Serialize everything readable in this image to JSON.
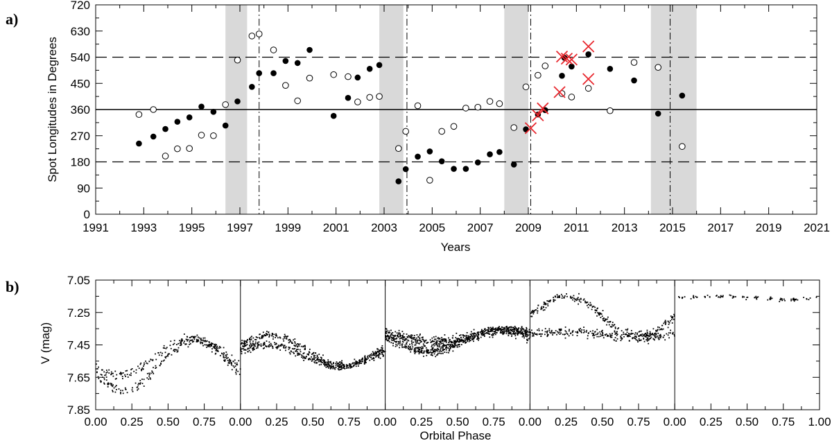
{
  "chart_data": [
    {
      "panel": "a)",
      "type": "scatter",
      "xlabel": "Years",
      "ylabel": "Spot Longitudes in Degrees",
      "xlim": [
        1991,
        2021
      ],
      "ylim": [
        0,
        720
      ],
      "xticks": [
        "1991",
        "1993",
        "1995",
        "1997",
        "1999",
        "2001",
        "2003",
        "2005",
        "2007",
        "2009",
        "2011",
        "2013",
        "2015",
        "2017",
        "2019",
        "2021"
      ],
      "yticks": [
        "0",
        "90",
        "180",
        "270",
        "360",
        "450",
        "540",
        "630",
        "720"
      ],
      "hlines_dashed": [
        180,
        540
      ],
      "hline_solid": 360,
      "vlines_dashdot": [
        1997.8,
        2003.95,
        2009.1,
        2014.9
      ],
      "shaded_bands": [
        [
          1996.4,
          1997.3
        ],
        [
          2002.8,
          2003.8
        ],
        [
          2008.0,
          2009.0
        ],
        [
          2014.1,
          2016.0
        ]
      ],
      "series": [
        {
          "marker": "filled-circle",
          "points": [
            [
              1992.8,
              243
            ],
            [
              1993.4,
              267
            ],
            [
              1993.9,
              293
            ],
            [
              1994.4,
              318
            ],
            [
              1994.9,
              333
            ],
            [
              1995.4,
              370
            ],
            [
              1995.9,
              352
            ],
            [
              1996.4,
              305
            ],
            [
              1996.9,
              388
            ],
            [
              1997.5,
              438
            ],
            [
              1997.8,
              485
            ],
            [
              1998.4,
              485
            ],
            [
              1998.9,
              527
            ],
            [
              1999.4,
              520
            ],
            [
              1999.9,
              565
            ],
            [
              2000.9,
              338
            ],
            [
              2001.5,
              400
            ],
            [
              2001.9,
              470
            ],
            [
              2002.4,
              500
            ],
            [
              2002.8,
              513
            ],
            [
              2003.6,
              113
            ],
            [
              2003.9,
              155
            ],
            [
              2004.4,
              198
            ],
            [
              2004.9,
              216
            ],
            [
              2005.4,
              182
            ],
            [
              2005.9,
              156
            ],
            [
              2006.4,
              156
            ],
            [
              2006.9,
              178
            ],
            [
              2007.4,
              206
            ],
            [
              2007.8,
              214
            ],
            [
              2008.4,
              171
            ],
            [
              2008.9,
              292
            ],
            [
              2009.4,
              343
            ],
            [
              2009.7,
              358
            ],
            [
              2010.4,
              476
            ],
            [
              2010.5,
              538
            ],
            [
              2010.8,
              508
            ],
            [
              2011.5,
              550
            ],
            [
              2012.4,
              500
            ],
            [
              2013.4,
              460
            ],
            [
              2014.4,
              346
            ],
            [
              2015.4,
              408
            ]
          ]
        },
        {
          "marker": "open-circle",
          "points": [
            [
              1992.8,
              343
            ],
            [
              1993.4,
              360
            ],
            [
              1993.9,
              200
            ],
            [
              1994.4,
              225
            ],
            [
              1994.9,
              226
            ],
            [
              1995.4,
              272
            ],
            [
              1995.9,
              270
            ],
            [
              1996.4,
              377
            ],
            [
              1996.9,
              530
            ],
            [
              1997.5,
              613
            ],
            [
              1997.8,
              620
            ],
            [
              1998.4,
              565
            ],
            [
              1998.9,
              443
            ],
            [
              1999.4,
              390
            ],
            [
              1999.9,
              468
            ],
            [
              2000.9,
              480
            ],
            [
              2001.5,
              473
            ],
            [
              2001.9,
              386
            ],
            [
              2002.4,
              402
            ],
            [
              2002.8,
              405
            ],
            [
              2003.6,
              226
            ],
            [
              2003.9,
              285
            ],
            [
              2004.4,
              373
            ],
            [
              2004.9,
              117
            ],
            [
              2005.4,
              285
            ],
            [
              2005.9,
              302
            ],
            [
              2006.4,
              365
            ],
            [
              2006.9,
              368
            ],
            [
              2007.4,
              388
            ],
            [
              2007.8,
              380
            ],
            [
              2008.4,
              298
            ],
            [
              2008.9,
              438
            ],
            [
              2009.4,
              478
            ],
            [
              2009.7,
              510
            ],
            [
              2010.4,
              415
            ],
            [
              2010.8,
              403
            ],
            [
              2011.5,
              433
            ],
            [
              2012.4,
              356
            ],
            [
              2013.4,
              522
            ],
            [
              2014.4,
              505
            ],
            [
              2015.4,
              233
            ]
          ]
        },
        {
          "marker": "red-cross",
          "points": [
            [
              2009.1,
              296
            ],
            [
              2009.4,
              340
            ],
            [
              2009.6,
              364
            ],
            [
              2010.3,
              420
            ],
            [
              2010.4,
              542
            ],
            [
              2010.6,
              535
            ],
            [
              2010.8,
              532
            ],
            [
              2011.5,
              577
            ],
            [
              2011.5,
              465
            ]
          ]
        }
      ]
    },
    {
      "panel": "b)",
      "type": "scatter",
      "xlabel": "Orbital Phase",
      "ylabel": "V (mag)",
      "ylim": [
        7.85,
        7.05
      ],
      "yticks": [
        "7.05",
        "7.25",
        "7.45",
        "7.65",
        "7.85"
      ],
      "xticks": [
        "0.00",
        "0.25",
        "0.50",
        "0.75",
        "0.00",
        "0.25",
        "0.50",
        "0.75",
        "0.00",
        "0.25",
        "0.50",
        "0.75",
        "0.00",
        "0.25",
        "0.50",
        "0.75",
        "0.00",
        "0.25",
        "0.50",
        "0.75",
        "1.00"
      ],
      "subpanels": [
        {
          "mean": 7.55,
          "amplitude": 0.13,
          "peak_phase": 0.68,
          "scatter": 0.03,
          "count": 380,
          "second_band": 0.05
        },
        {
          "mean": 7.5,
          "amplitude": 0.08,
          "peak_phase": 0.2,
          "scatter": 0.025,
          "count": 620,
          "second_band": 0.03
        },
        {
          "mean": 7.41,
          "amplitude": 0.05,
          "peak_phase": 0.82,
          "scatter": 0.03,
          "count": 900,
          "second_band": 0.03
        },
        {
          "mean": 7.33,
          "amplitude": 0.07,
          "peak_phase": 0.25,
          "scatter": 0.03,
          "count": 520,
          "second_band": 0.11
        },
        {
          "mean": 7.16,
          "amplitude": 0.01,
          "peak_phase": 0.3,
          "scatter": 0.012,
          "count": 90,
          "second_band": 0,
          "phase_range": [
            0.05,
            1.0
          ]
        }
      ]
    }
  ]
}
